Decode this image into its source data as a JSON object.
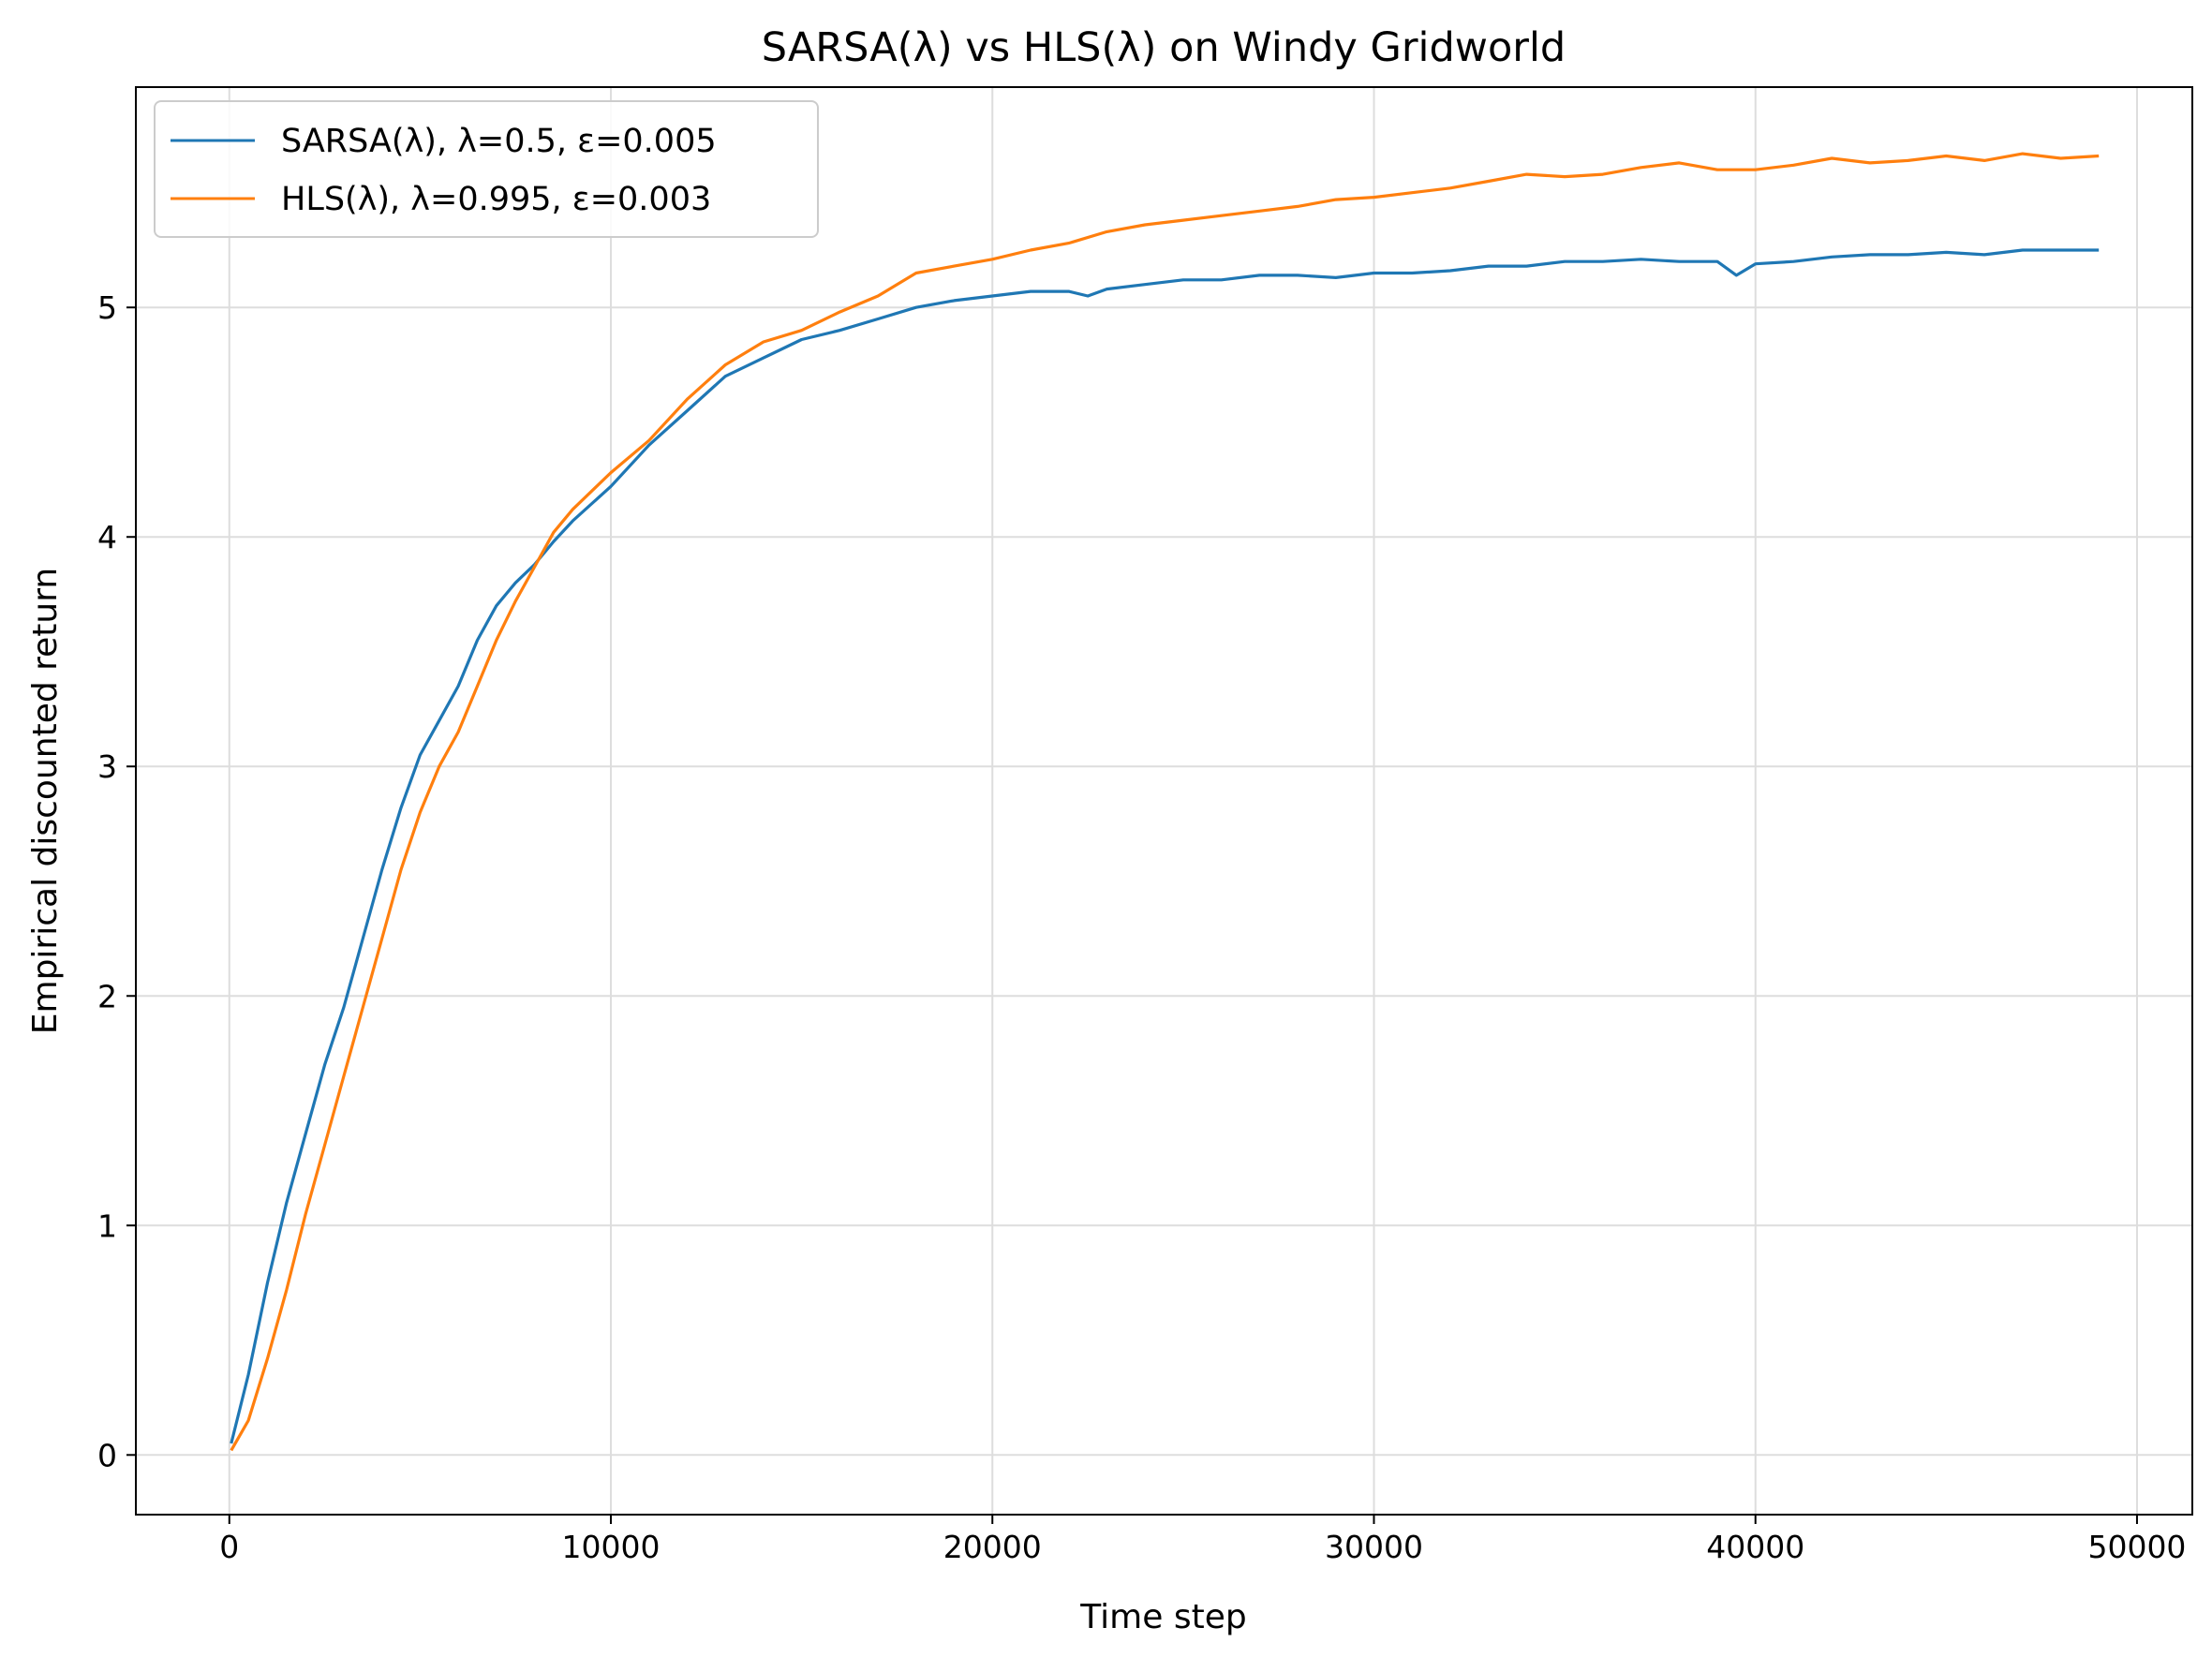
{
  "chart_data": {
    "type": "line",
    "title": "SARSA(λ) vs HLS(λ) on Windy Gridworld",
    "xlabel": "Time step",
    "ylabel": "Empirical discounted return",
    "xlim": [
      -2450,
      51450
    ],
    "ylim": [
      -0.26,
      5.96
    ],
    "xticks": [
      0,
      10000,
      20000,
      30000,
      40000,
      50000
    ],
    "yticks": [
      0,
      1,
      2,
      3,
      4,
      5
    ],
    "grid": true,
    "legend_position": "top-left",
    "series": [
      {
        "name": "SARSA(λ), λ=0.5, ε=0.005",
        "color": "#1f77b4",
        "points": [
          [
            50,
            0.05
          ],
          [
            500,
            0.35
          ],
          [
            1000,
            0.75
          ],
          [
            1500,
            1.1
          ],
          [
            2000,
            1.4
          ],
          [
            2500,
            1.7
          ],
          [
            3000,
            1.95
          ],
          [
            3500,
            2.25
          ],
          [
            4000,
            2.55
          ],
          [
            4500,
            2.82
          ],
          [
            5000,
            3.05
          ],
          [
            5500,
            3.2
          ],
          [
            6000,
            3.35
          ],
          [
            6500,
            3.55
          ],
          [
            7000,
            3.7
          ],
          [
            7500,
            3.8
          ],
          [
            8000,
            3.88
          ],
          [
            8500,
            3.98
          ],
          [
            9000,
            4.07
          ],
          [
            10000,
            4.22
          ],
          [
            11000,
            4.4
          ],
          [
            12000,
            4.55
          ],
          [
            13000,
            4.7
          ],
          [
            14000,
            4.78
          ],
          [
            15000,
            4.86
          ],
          [
            16000,
            4.9
          ],
          [
            17000,
            4.95
          ],
          [
            18000,
            5.0
          ],
          [
            19000,
            5.03
          ],
          [
            20000,
            5.05
          ],
          [
            21000,
            5.07
          ],
          [
            22000,
            5.07
          ],
          [
            22500,
            5.05
          ],
          [
            23000,
            5.08
          ],
          [
            24000,
            5.1
          ],
          [
            25000,
            5.12
          ],
          [
            26000,
            5.12
          ],
          [
            27000,
            5.14
          ],
          [
            28000,
            5.14
          ],
          [
            29000,
            5.13
          ],
          [
            30000,
            5.15
          ],
          [
            31000,
            5.15
          ],
          [
            32000,
            5.16
          ],
          [
            33000,
            5.18
          ],
          [
            34000,
            5.18
          ],
          [
            35000,
            5.2
          ],
          [
            36000,
            5.2
          ],
          [
            37000,
            5.21
          ],
          [
            38000,
            5.2
          ],
          [
            39000,
            5.2
          ],
          [
            39500,
            5.14
          ],
          [
            40000,
            5.19
          ],
          [
            41000,
            5.2
          ],
          [
            42000,
            5.22
          ],
          [
            43000,
            5.23
          ],
          [
            44000,
            5.23
          ],
          [
            45000,
            5.24
          ],
          [
            46000,
            5.23
          ],
          [
            47000,
            5.25
          ],
          [
            48000,
            5.25
          ],
          [
            49000,
            5.25
          ]
        ]
      },
      {
        "name": "HLS(λ), λ=0.995, ε=0.003",
        "color": "#ff7f0e",
        "points": [
          [
            50,
            0.02
          ],
          [
            500,
            0.15
          ],
          [
            1000,
            0.42
          ],
          [
            1500,
            0.72
          ],
          [
            2000,
            1.05
          ],
          [
            2500,
            1.35
          ],
          [
            3000,
            1.65
          ],
          [
            3500,
            1.95
          ],
          [
            4000,
            2.25
          ],
          [
            4500,
            2.55
          ],
          [
            5000,
            2.8
          ],
          [
            5500,
            3.0
          ],
          [
            6000,
            3.15
          ],
          [
            6500,
            3.35
          ],
          [
            7000,
            3.55
          ],
          [
            7500,
            3.72
          ],
          [
            8000,
            3.87
          ],
          [
            8500,
            4.02
          ],
          [
            9000,
            4.12
          ],
          [
            10000,
            4.28
          ],
          [
            11000,
            4.42
          ],
          [
            12000,
            4.6
          ],
          [
            13000,
            4.75
          ],
          [
            14000,
            4.85
          ],
          [
            15000,
            4.9
          ],
          [
            16000,
            4.98
          ],
          [
            17000,
            5.05
          ],
          [
            18000,
            5.15
          ],
          [
            19000,
            5.18
          ],
          [
            20000,
            5.21
          ],
          [
            21000,
            5.25
          ],
          [
            22000,
            5.28
          ],
          [
            23000,
            5.33
          ],
          [
            24000,
            5.36
          ],
          [
            25000,
            5.38
          ],
          [
            26000,
            5.4
          ],
          [
            27000,
            5.42
          ],
          [
            28000,
            5.44
          ],
          [
            29000,
            5.47
          ],
          [
            30000,
            5.48
          ],
          [
            31000,
            5.5
          ],
          [
            32000,
            5.52
          ],
          [
            33000,
            5.55
          ],
          [
            34000,
            5.58
          ],
          [
            35000,
            5.57
          ],
          [
            36000,
            5.58
          ],
          [
            37000,
            5.61
          ],
          [
            38000,
            5.63
          ],
          [
            39000,
            5.6
          ],
          [
            40000,
            5.6
          ],
          [
            41000,
            5.62
          ],
          [
            42000,
            5.65
          ],
          [
            43000,
            5.63
          ],
          [
            44000,
            5.64
          ],
          [
            45000,
            5.66
          ],
          [
            46000,
            5.64
          ],
          [
            47000,
            5.67
          ],
          [
            48000,
            5.65
          ],
          [
            49000,
            5.66
          ]
        ]
      }
    ]
  }
}
